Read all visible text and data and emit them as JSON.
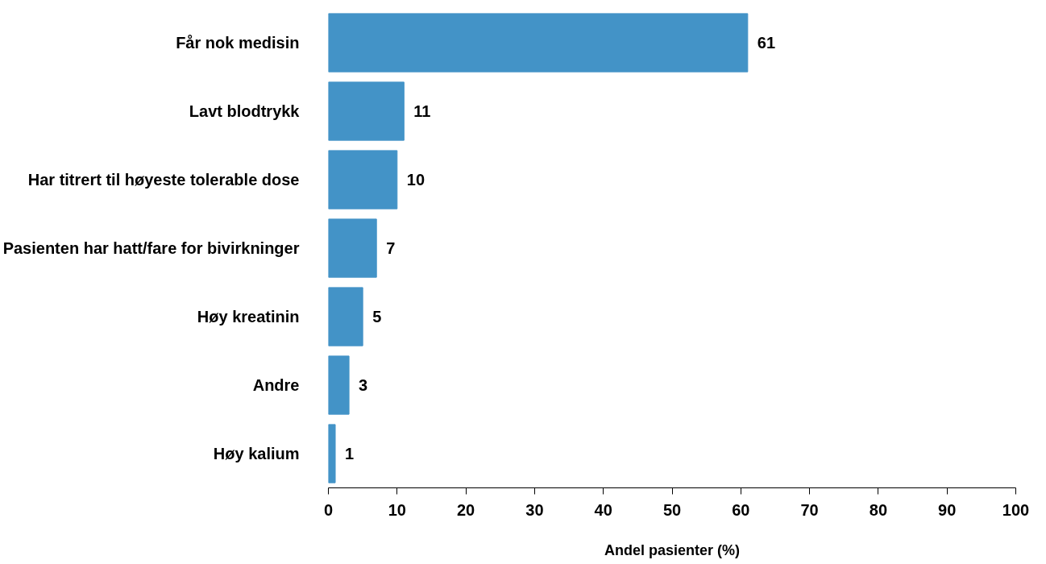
{
  "chart_data": {
    "type": "bar",
    "orientation": "horizontal",
    "xlabel": "Andel pasienter (%)",
    "categories": [
      "Får nok medisin",
      "Lavt blodtrykk",
      "Har titrert til høyeste tolerable dose",
      "Pasienten har hatt/fare for bivirkninger",
      "Høy kreatinin",
      "Andre",
      "Høy kalium"
    ],
    "values": [
      61,
      11,
      10,
      7,
      5,
      3,
      1
    ],
    "color": "#4393c7",
    "data_labels": true,
    "xlim": [
      0,
      100
    ],
    "xticks": [
      0,
      10,
      20,
      30,
      40,
      50,
      60,
      70,
      80,
      90,
      100
    ],
    "grid": false
  }
}
